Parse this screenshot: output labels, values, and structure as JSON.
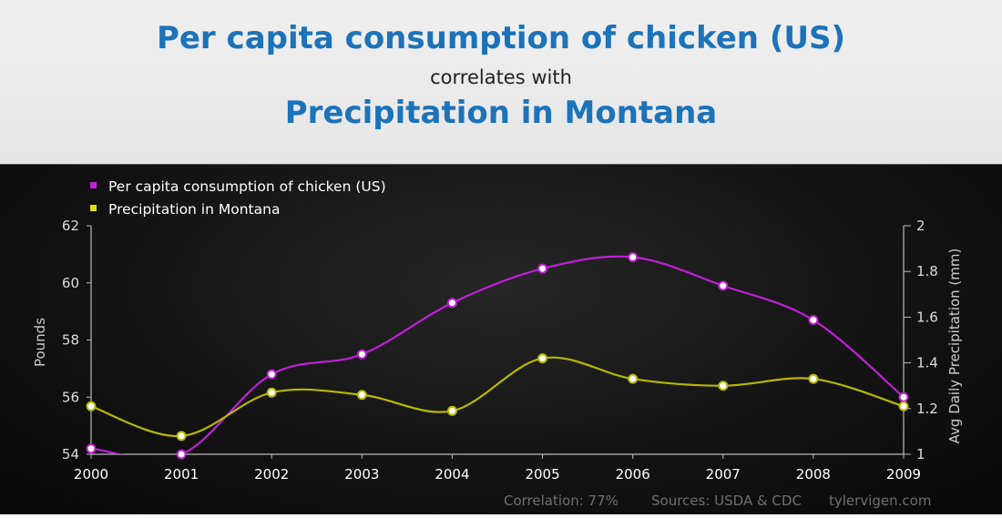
{
  "header": {
    "title1": "Per capita consumption of chicken (US)",
    "connector": "correlates with",
    "title2": "Precipitation in Montana"
  },
  "footer": {
    "correlation": "Correlation: 77%",
    "sources": "Sources: USDA & CDC",
    "site": "tylervigen.com"
  },
  "colors": {
    "series1": "#c020d8",
    "series2": "#b8b800",
    "axis": "#bbbbbb",
    "title": "#1c73b9"
  },
  "chart_data": {
    "type": "line",
    "x": [
      "2000",
      "2001",
      "2002",
      "2003",
      "2004",
      "2005",
      "2006",
      "2007",
      "2008",
      "2009"
    ],
    "yleft": {
      "label": "Pounds",
      "ylim": [
        54,
        62
      ],
      "ticks": [
        "54",
        "56",
        "58",
        "60",
        "62"
      ]
    },
    "yright": {
      "label": "Avg Daily Precipitation (mm)",
      "ylim": [
        1,
        2
      ],
      "ticks": [
        "1",
        "1.2",
        "1.4",
        "1.6",
        "1.8",
        "2"
      ]
    },
    "legend_position": "top-left",
    "grid": false,
    "series": [
      {
        "name": "Per capita consumption of chicken (US)",
        "axis": "left",
        "values": [
          54.2,
          54.0,
          56.8,
          57.5,
          59.3,
          60.5,
          60.9,
          59.9,
          58.7,
          56.0
        ]
      },
      {
        "name": "Precipitation in Montana",
        "axis": "right",
        "values": [
          1.21,
          1.08,
          1.27,
          1.26,
          1.19,
          1.42,
          1.33,
          1.3,
          1.33,
          1.21
        ]
      }
    ]
  }
}
